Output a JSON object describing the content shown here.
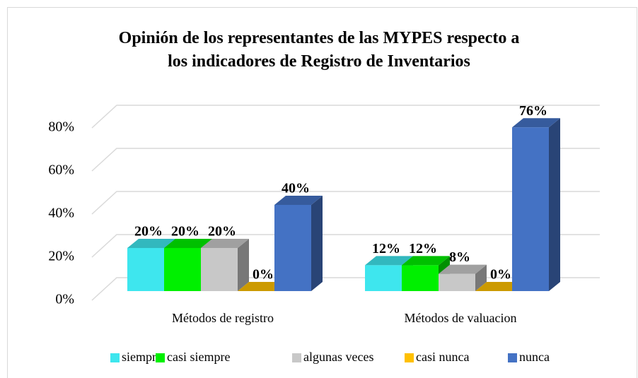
{
  "chart_data": {
    "type": "bar3d",
    "title": "Opinión de los representantes de las MYPES respecto a\nlos indicadores  de Registro de Inventarios",
    "categories": [
      "Métodos de registro",
      "Métodos de valuacion"
    ],
    "series": [
      {
        "name": "siempre",
        "color": "#3ee6ee",
        "values": [
          20,
          12
        ],
        "value_labels": [
          "20%",
          "12%"
        ]
      },
      {
        "name": "casi siempre",
        "color": "#00f000",
        "values": [
          20,
          12
        ],
        "value_labels": [
          "20%",
          "12%"
        ]
      },
      {
        "name": "algunas veces",
        "color": "#c8c8c8",
        "values": [
          20,
          8
        ],
        "value_labels": [
          "20%",
          "8%"
        ]
      },
      {
        "name": "casi nunca",
        "color": "#ffc000",
        "values": [
          0,
          0
        ],
        "value_labels": [
          "0%",
          "0%"
        ]
      },
      {
        "name": "nunca",
        "color": "#4472c4",
        "values": [
          40,
          76
        ],
        "value_labels": [
          "40%",
          "76%"
        ]
      }
    ],
    "ylim": [
      0,
      80
    ],
    "yticks": [
      {
        "value": 0,
        "label": "0%"
      },
      {
        "value": 20,
        "label": "20%"
      },
      {
        "value": 40,
        "label": "40%"
      },
      {
        "value": 60,
        "label": "60%"
      },
      {
        "value": 80,
        "label": "80%"
      }
    ],
    "grid": true,
    "legend": "bottom"
  }
}
